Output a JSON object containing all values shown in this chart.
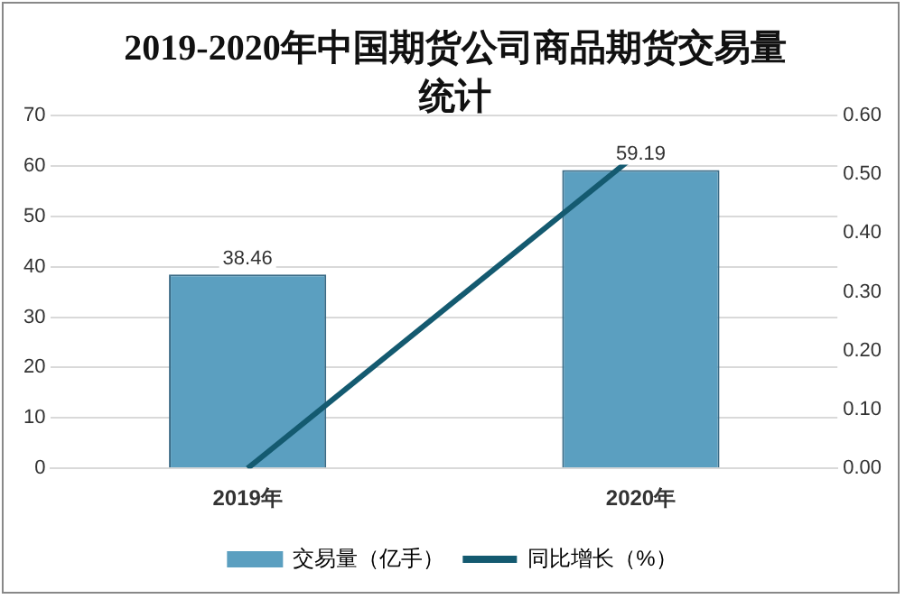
{
  "chart_data": {
    "type": "bar",
    "title": "2019-2020年中国期货公司商品期货交易量统计",
    "categories": [
      "2019年",
      "2020年"
    ],
    "series": [
      {
        "name": "交易量（亿手）",
        "color": "#5b9fc0",
        "values": [
          38.46,
          59.19
        ],
        "value_labels": [
          "38.46",
          "59.19"
        ]
      },
      {
        "name": "同比增长（%）",
        "type": "line",
        "axis": "y2",
        "color": "#145a70",
        "values": [
          0.0,
          0.54
        ]
      }
    ],
    "ylim": [
      0,
      70
    ],
    "yticks": [
      0,
      10,
      20,
      30,
      40,
      50,
      60,
      70
    ],
    "y2lim": [
      0,
      0.6
    ],
    "y2ticks": [
      {
        "value": 0,
        "label": "0.00"
      },
      {
        "value": 0.1,
        "label": "0.10"
      },
      {
        "value": 0.2,
        "label": "0.20"
      },
      {
        "value": 0.3,
        "label": "0.30"
      },
      {
        "value": 0.4,
        "label": "0.40"
      },
      {
        "value": 0.5,
        "label": "0.50"
      },
      {
        "value": 0.6,
        "label": "0.60"
      }
    ],
    "grid": "y",
    "legend": "bottom"
  }
}
